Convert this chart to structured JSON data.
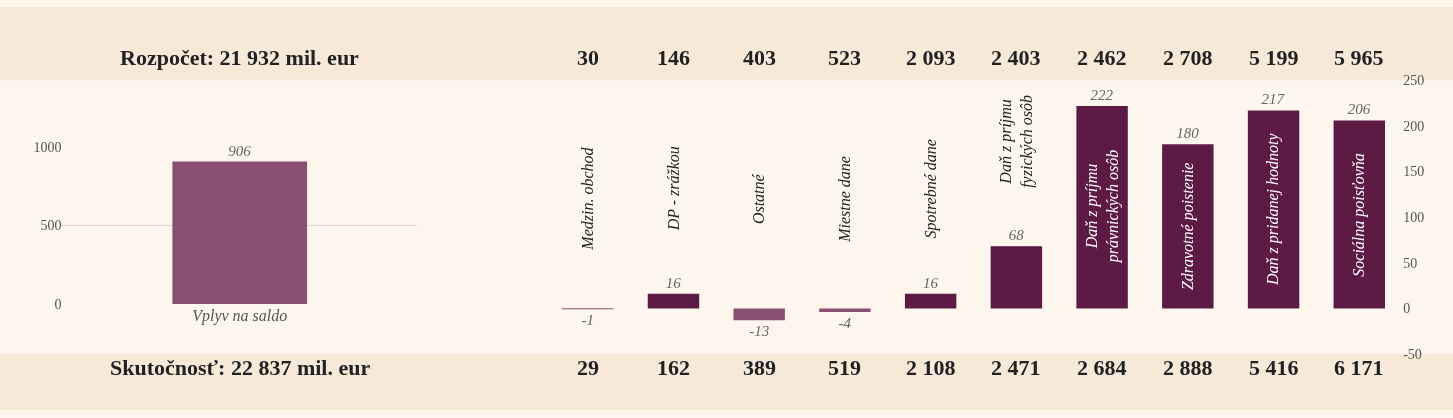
{
  "chart_data": [
    {
      "type": "bar",
      "categories": [
        "Vplyv na saldo"
      ],
      "values": [
        906
      ],
      "color": "#8b4f72",
      "data_labels": true,
      "grid": "y",
      "ylim": [
        0,
        1000
      ],
      "yticks": [
        0,
        500,
        1000
      ],
      "annotations": [
        "Rozpočet: 21 932 mil. eur",
        "Skutočnosť: 22 837 mil. eur"
      ]
    },
    {
      "type": "bar",
      "categories": [
        "Medzin. obchod",
        "DP - zrážkou",
        "Ostatné",
        "Miestne dane",
        "Spotrebné dane",
        "Daň z príjmu\nfyzických osôb",
        "Daň z príjmu\nprávnických osôb",
        "Zdravotné poistenie",
        "Daň z pridanej hodnoty",
        "Sociálna poisťovňa"
      ],
      "values": [
        -1,
        16,
        -13,
        -4,
        16,
        68,
        222,
        180,
        217,
        206
      ],
      "colors": [
        "#8b4f72",
        "#5c1a45",
        "#8b4f72",
        "#8b4f72",
        "#5c1a45",
        "#5c1a45",
        "#5c1a45",
        "#5c1a45",
        "#5c1a45",
        "#5c1a45"
      ],
      "data_labels": true,
      "grid": false,
      "tick_labels": "y",
      "ylim": [
        -50,
        250
      ],
      "yticks": [
        -50,
        0,
        50,
        100,
        150,
        200,
        250
      ],
      "annotations": [
        "30",
        "146",
        "403",
        "523",
        "2 093",
        "2 403",
        "2 462",
        "2 708",
        "5 199",
        "5 965",
        "29",
        "162",
        "389",
        "519",
        "2 108",
        "2 471",
        "2 684",
        "2 888",
        "5 416",
        "6 171"
      ]
    }
  ]
}
